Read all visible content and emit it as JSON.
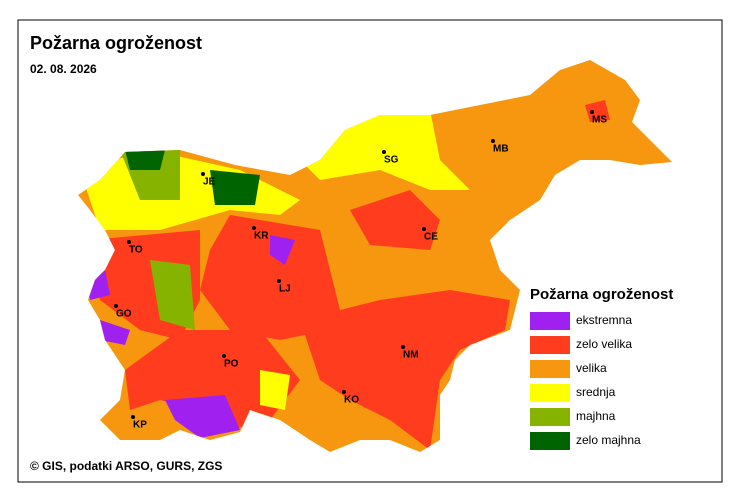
{
  "header": {
    "title": "Požarna ogroženost",
    "date": "02. 08. 2026"
  },
  "legend": {
    "title": "Požarna ogroženost",
    "items": [
      {
        "label": "ekstremna",
        "color": "#a020f0"
      },
      {
        "label": "zelo velika",
        "color": "#ff3c1e"
      },
      {
        "label": "velika",
        "color": "#f7960f"
      },
      {
        "label": "srednja",
        "color": "#ffff00"
      },
      {
        "label": "majhna",
        "color": "#86b300"
      },
      {
        "label": "zelo majhna",
        "color": "#006400"
      }
    ]
  },
  "cities": [
    {
      "label": "JE"
    },
    {
      "label": "TO"
    },
    {
      "label": "KR"
    },
    {
      "label": "LJ"
    },
    {
      "label": "GO"
    },
    {
      "label": "PO"
    },
    {
      "label": "KP"
    },
    {
      "label": "KO"
    },
    {
      "label": "NM"
    },
    {
      "label": "CE"
    },
    {
      "label": "SG"
    },
    {
      "label": "MB"
    },
    {
      "label": "MS"
    }
  ],
  "footer": "© GIS, podatki ARSO, GURS, ZGS"
}
